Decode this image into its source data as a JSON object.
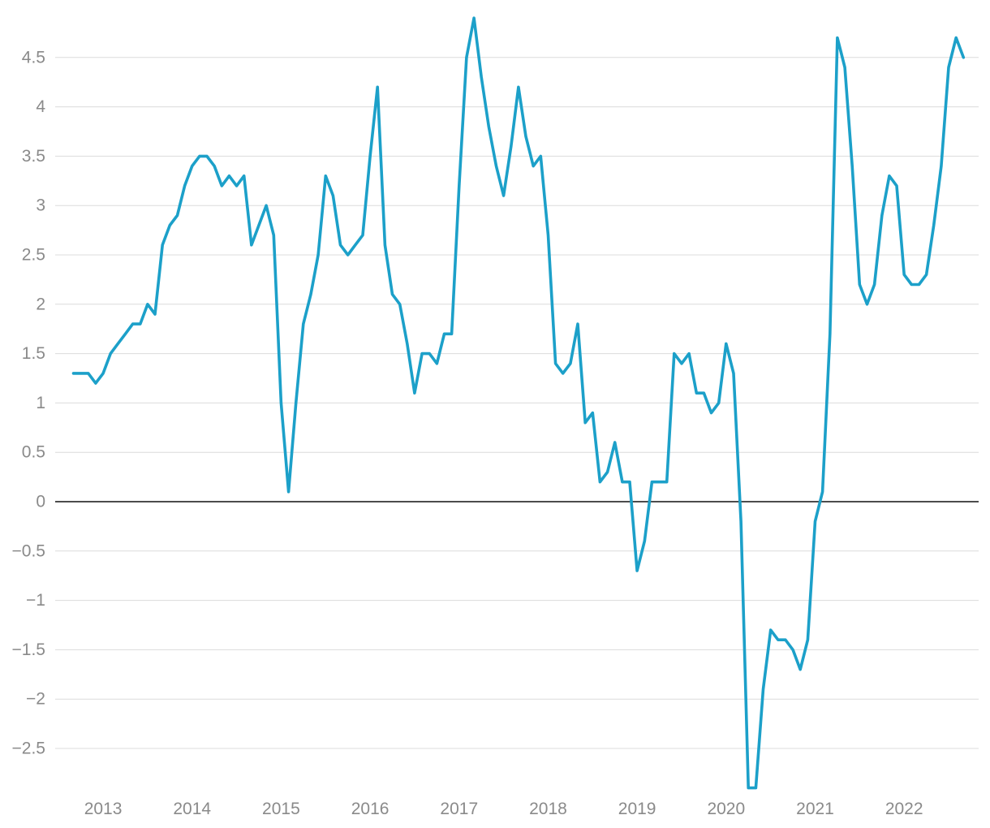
{
  "chart_data": {
    "type": "line",
    "title": "",
    "xlabel": "",
    "ylabel": "",
    "ylim": [
      -2.9,
      4.9
    ],
    "y_ticks": [
      {
        "value": 4.5,
        "label": "4.5"
      },
      {
        "value": 4,
        "label": "4"
      },
      {
        "value": 3.5,
        "label": "3.5"
      },
      {
        "value": 3,
        "label": "3"
      },
      {
        "value": 2.5,
        "label": "2.5"
      },
      {
        "value": 2,
        "label": "2"
      },
      {
        "value": 1.5,
        "label": "1.5"
      },
      {
        "value": 1,
        "label": "1"
      },
      {
        "value": 0.5,
        "label": "0.5"
      },
      {
        "value": 0,
        "label": "0"
      },
      {
        "value": -0.5,
        "label": "−0.5"
      },
      {
        "value": -1,
        "label": "−1"
      },
      {
        "value": -1.5,
        "label": "−1.5"
      },
      {
        "value": -2,
        "label": "−2"
      },
      {
        "value": -2.5,
        "label": "−2.5"
      }
    ],
    "x_ticks": [
      {
        "value": "2013-01",
        "label": "2013"
      },
      {
        "value": "2014-01",
        "label": "2014"
      },
      {
        "value": "2015-01",
        "label": "2015"
      },
      {
        "value": "2016-01",
        "label": "2016"
      },
      {
        "value": "2017-01",
        "label": "2017"
      },
      {
        "value": "2018-01",
        "label": "2018"
      },
      {
        "value": "2019-01",
        "label": "2019"
      },
      {
        "value": "2020-01",
        "label": "2020"
      },
      {
        "value": "2021-01",
        "label": "2021"
      },
      {
        "value": "2022-01",
        "label": "2022"
      }
    ],
    "x_start": "2012-09",
    "grid": "horizontal",
    "legend": "none",
    "series": [
      {
        "color": "#1ca0c9",
        "x_step": "month",
        "values": [
          1.3,
          1.3,
          1.3,
          1.2,
          1.3,
          1.5,
          1.6,
          1.7,
          1.8,
          1.8,
          2.0,
          1.9,
          2.6,
          2.8,
          2.9,
          3.2,
          3.4,
          3.5,
          3.5,
          3.4,
          3.2,
          3.3,
          3.2,
          3.3,
          2.6,
          2.8,
          3.0,
          2.7,
          1.0,
          0.1,
          1.0,
          1.8,
          2.1,
          2.5,
          3.3,
          3.1,
          2.6,
          2.5,
          2.6,
          2.7,
          3.5,
          4.2,
          2.6,
          2.1,
          2.0,
          1.6,
          1.1,
          1.5,
          1.5,
          1.4,
          1.7,
          1.7,
          3.2,
          4.5,
          4.9,
          4.3,
          3.8,
          3.4,
          3.1,
          3.6,
          4.2,
          3.7,
          3.4,
          3.5,
          2.7,
          1.4,
          1.3,
          1.4,
          1.8,
          0.8,
          0.9,
          0.2,
          0.3,
          0.6,
          0.2,
          0.2,
          -0.7,
          -0.4,
          0.2,
          0.2,
          0.2,
          1.5,
          1.4,
          1.5,
          1.1,
          1.1,
          0.9,
          1.0,
          1.6,
          1.3,
          -0.2,
          -2.9,
          -2.9,
          -1.9,
          -1.3,
          -1.4,
          -1.4,
          -1.5,
          -1.7,
          -1.4,
          -0.2,
          0.1,
          1.7,
          4.7,
          4.4,
          3.4,
          2.2,
          2.0,
          2.2,
          2.9,
          3.3,
          3.2,
          2.3,
          2.2,
          2.2,
          2.3,
          2.8,
          3.4,
          4.4,
          4.7,
          4.5
        ]
      }
    ]
  }
}
